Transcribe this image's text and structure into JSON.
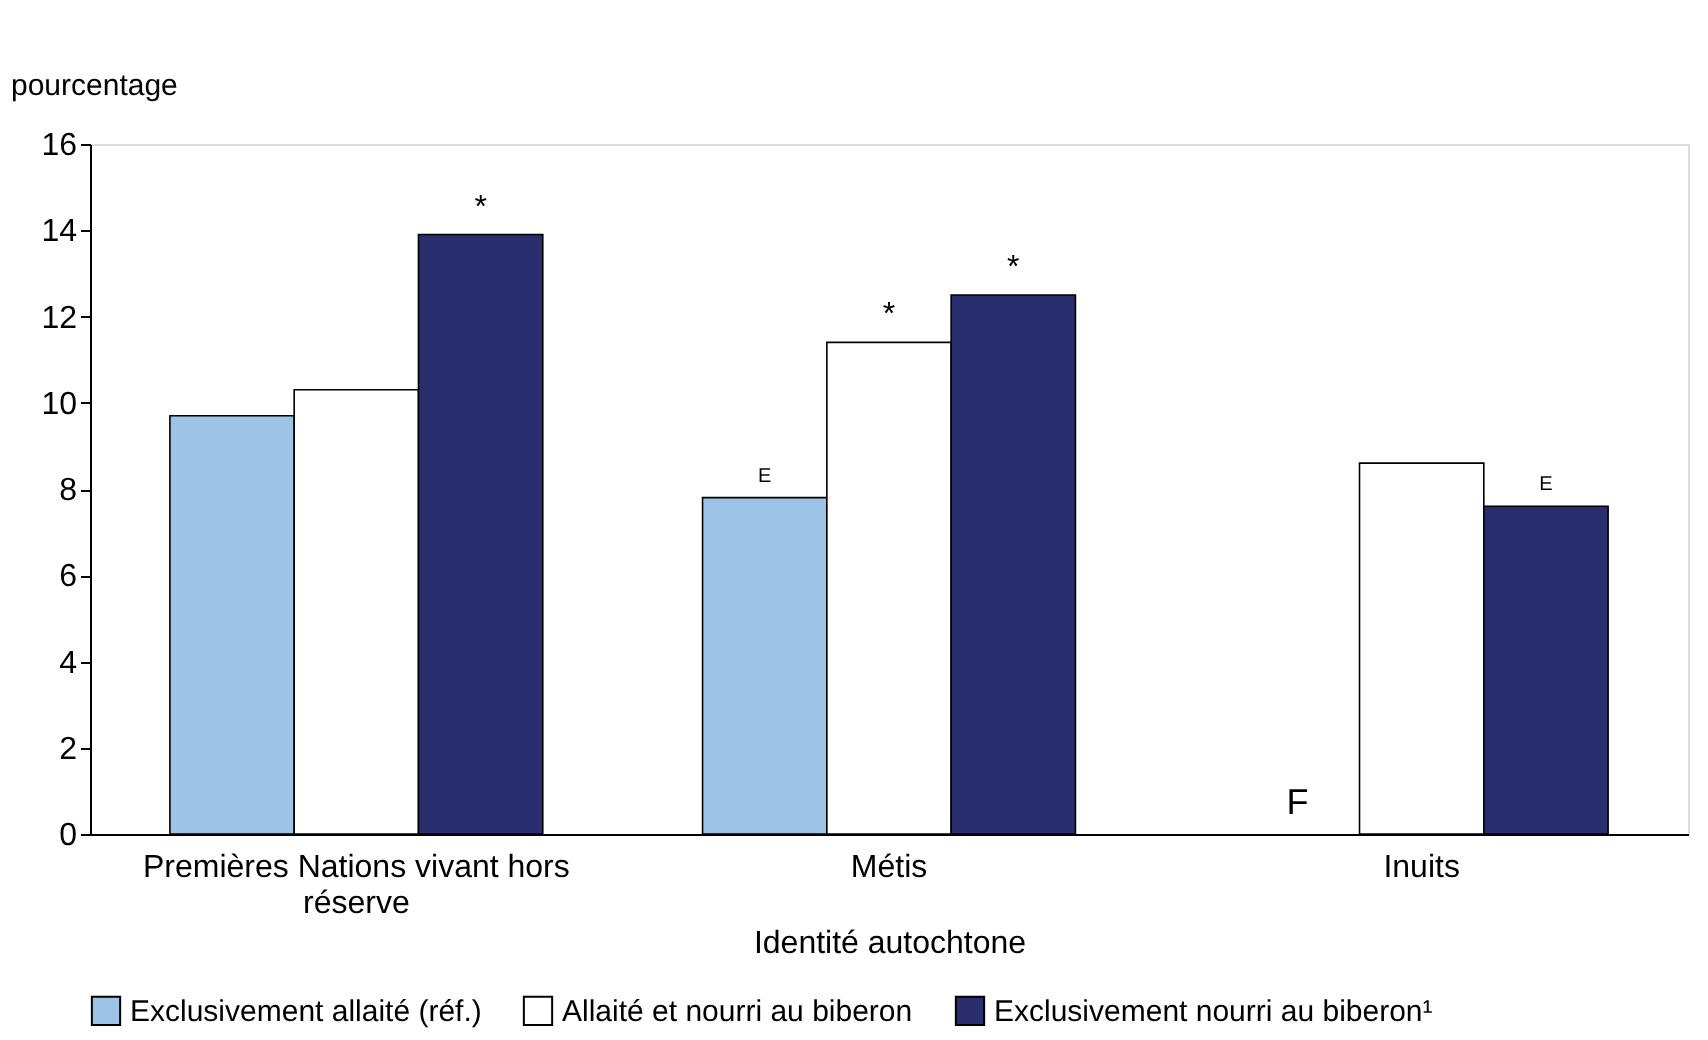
{
  "chart_data": {
    "type": "bar",
    "xlabel": "Identité autochtone",
    "ylabel": "pourcentage",
    "categories": [
      "Premières Nations vivant hors réserve",
      "Métis",
      "Inuits"
    ],
    "series": [
      {
        "name": "Exclusivement allaité (réf.)",
        "color": "#9dc3e6",
        "values": [
          9.7,
          7.8,
          null
        ],
        "value_labels": [
          null,
          "E",
          "F"
        ]
      },
      {
        "name": "Allaité et nourri au biberon",
        "color": "#ffffff",
        "values": [
          10.3,
          11.4,
          8.6
        ],
        "value_labels": [
          null,
          "*",
          null
        ]
      },
      {
        "name": "Exclusivement nourri au biberon¹",
        "color": "#2a2d6e",
        "values": [
          13.9,
          12.5,
          7.6
        ],
        "value_labels": [
          "*",
          "*",
          "E"
        ]
      }
    ],
    "ylim": [
      0,
      16
    ],
    "yticks": [
      0,
      2,
      4,
      6,
      8,
      10,
      12,
      14,
      16
    ],
    "grid": false,
    "legend": "bottom"
  }
}
